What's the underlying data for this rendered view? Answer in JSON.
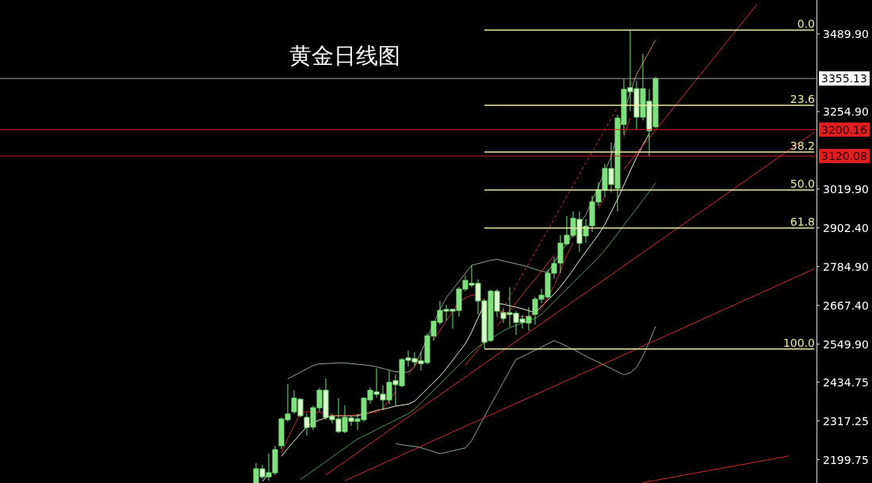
{
  "chart_data": {
    "type": "candlestick",
    "title": "黄金日线图",
    "color": "#80e080",
    "tick_labels": "y",
    "grid": false,
    "ylim": [
      2129,
      3593
    ],
    "yticks": [
      {
        "value": 2199.75,
        "label": "2199.75"
      },
      {
        "value": 2317.25,
        "label": "2317.25"
      },
      {
        "value": 2434.75,
        "label": "2434.75"
      },
      {
        "value": 2549.9,
        "label": "2549.90"
      },
      {
        "value": 2667.4,
        "label": "2667.40"
      },
      {
        "value": 2784.9,
        "label": "2784.90"
      },
      {
        "value": 2902.4,
        "label": "2902.40"
      },
      {
        "value": 3019.9,
        "label": "3019.90"
      },
      {
        "value": 3254.9,
        "label": "3254.90"
      },
      {
        "value": 3489.9,
        "label": "3489.90"
      }
    ],
    "categories": [
      null,
      null,
      null,
      null,
      null,
      null,
      null,
      null,
      null,
      null,
      null,
      null,
      null,
      null,
      null,
      null,
      null,
      null,
      null,
      null,
      null,
      null,
      null,
      null,
      null,
      null,
      null,
      null,
      null,
      null,
      null,
      null,
      null,
      null,
      null,
      null,
      null,
      null,
      null,
      null,
      null,
      null,
      null,
      null,
      null,
      null,
      null,
      null,
      null,
      null,
      null,
      null,
      null,
      null,
      null,
      null,
      null,
      null,
      null,
      null,
      null,
      null,
      null,
      null,
      null,
      null,
      null,
      null,
      null,
      null,
      null,
      null,
      null,
      null,
      null,
      null,
      null,
      null,
      null,
      null,
      null,
      null,
      null,
      null,
      null,
      null,
      null,
      null,
      null
    ],
    "ohlc": [
      [
        2130,
        2189,
        2130,
        2172
      ],
      [
        2172,
        2184,
        2141,
        2148
      ],
      [
        2148,
        2218,
        2136,
        2160
      ],
      [
        2160,
        2242,
        2153,
        2230
      ],
      [
        2242,
        2328,
        2232,
        2323
      ],
      [
        2321,
        2429,
        2314,
        2338
      ],
      [
        2345,
        2410,
        2338,
        2386
      ],
      [
        2383,
        2386,
        2328,
        2333
      ],
      [
        2328,
        2340,
        2273,
        2297
      ],
      [
        2299,
        2364,
        2290,
        2357
      ],
      [
        2357,
        2417,
        2345,
        2410
      ],
      [
        2410,
        2446,
        2321,
        2328
      ],
      [
        2331,
        2340,
        2309,
        2321
      ],
      [
        2323,
        2386,
        2280,
        2285
      ],
      [
        2285,
        2364,
        2280,
        2328
      ],
      [
        2326,
        2333,
        2302,
        2316
      ],
      [
        2316,
        2338,
        2290,
        2323
      ],
      [
        2321,
        2388,
        2314,
        2386
      ],
      [
        2381,
        2419,
        2369,
        2410
      ],
      [
        2405,
        2477,
        2388,
        2398
      ],
      [
        2398,
        2424,
        2350,
        2381
      ],
      [
        2381,
        2470,
        2369,
        2434
      ],
      [
        2439,
        2458,
        2364,
        2427
      ],
      [
        2424,
        2508,
        2419,
        2503
      ],
      [
        2508,
        2530,
        2482,
        2501
      ],
      [
        2506,
        2525,
        2484,
        2496
      ],
      [
        2499,
        2525,
        2470,
        2491
      ],
      [
        2494,
        2583,
        2489,
        2575
      ],
      [
        2575,
        2621,
        2561,
        2619
      ],
      [
        2616,
        2681,
        2609,
        2652
      ],
      [
        2655,
        2669,
        2621,
        2650
      ],
      [
        2655,
        2657,
        2597,
        2650
      ],
      [
        2652,
        2724,
        2633,
        2717
      ],
      [
        2717,
        2758,
        2710,
        2743
      ],
      [
        2734,
        2789,
        2722,
        2729
      ],
      [
        2734,
        2746,
        2640,
        2681
      ],
      [
        2681,
        2688,
        2537,
        2556
      ],
      [
        2561,
        2715,
        2556,
        2710
      ],
      [
        2710,
        2717,
        2633,
        2650
      ],
      [
        2645,
        2657,
        2614,
        2628
      ],
      [
        2645,
        2722,
        2602,
        2640
      ],
      [
        2643,
        2650,
        2578,
        2616
      ],
      [
        2626,
        2638,
        2597,
        2616
      ],
      [
        2614,
        2662,
        2590,
        2633
      ],
      [
        2640,
        2693,
        2609,
        2686
      ],
      [
        2686,
        2717,
        2674,
        2698
      ],
      [
        2693,
        2777,
        2688,
        2765
      ],
      [
        2765,
        2813,
        2748,
        2794
      ],
      [
        2796,
        2880,
        2765,
        2856
      ],
      [
        2854,
        2938,
        2849,
        2880
      ],
      [
        2880,
        2952,
        2873,
        2931
      ],
      [
        2928,
        2952,
        2830,
        2856
      ],
      [
        2878,
        2928,
        2856,
        2907
      ],
      [
        2909,
        3000,
        2890,
        2981
      ],
      [
        2981,
        3041,
        2969,
        3017
      ],
      [
        3017,
        3096,
        2998,
        3082
      ],
      [
        3082,
        3161,
        3010,
        3034
      ],
      [
        3022,
        3245,
        2952,
        3235
      ],
      [
        3216,
        3353,
        3185,
        3322
      ],
      [
        3327,
        3500,
        3257,
        3315
      ],
      [
        3324,
        3348,
        3202,
        3238
      ],
      [
        3238,
        3430,
        3228,
        3324
      ],
      [
        3286,
        3322,
        3120,
        3197
      ],
      [
        3209,
        3360,
        3204,
        3355
      ],
      null,
      null,
      null,
      null,
      null,
      null,
      null,
      null,
      null,
      null,
      null,
      null,
      null,
      null,
      null,
      null,
      null,
      null,
      null,
      null,
      null,
      null,
      null,
      null,
      null
    ],
    "ref_lines": [
      {
        "axis": "y",
        "value": 3355.13,
        "label": "3355.13",
        "color": "#a0a0a8"
      },
      {
        "axis": "y",
        "value": 3200.16,
        "label": "3200.16",
        "color": "#e02020"
      },
      {
        "axis": "y",
        "value": 3120.08,
        "label": "3120.08",
        "color": "#e02020"
      }
    ],
    "series": [
      {
        "type": "line",
        "color": "#8aa88a",
        "values": [
          null,
          null,
          null,
          null,
          null,
          2445,
          2455,
          2465,
          2475,
          2485,
          2490,
          2491,
          2492,
          2493,
          2493,
          2491,
          2489,
          2487,
          2485,
          2481,
          2476,
          2471,
          2466,
          2465,
          2465,
          2482,
          2525,
          2568,
          2612,
          2655,
          2691,
          2715,
          2740,
          2765,
          2789,
          2794,
          2799,
          2804,
          2807,
          2802,
          2798,
          2793,
          2789,
          2783,
          2777,
          2771,
          2768,
          2798,
          2827,
          2856,
          2885,
          2914,
          2942,
          2985,
          3029,
          3073,
          3119,
          3184,
          3249,
          3314,
          3367,
          3402,
          3437,
          3472,
          null,
          null,
          null,
          null,
          null,
          null,
          null,
          null,
          null,
          null,
          null,
          null,
          null,
          null,
          null,
          null,
          null,
          null,
          null,
          null,
          null,
          null,
          null,
          null,
          null
        ]
      },
      {
        "type": "line",
        "color": "#8aa88a",
        "values": [
          null,
          null,
          null,
          null,
          null,
          null,
          null,
          null,
          null,
          null,
          null,
          null,
          null,
          null,
          null,
          null,
          null,
          null,
          null,
          null,
          null,
          null,
          2248,
          2245,
          2242,
          2240,
          2236,
          2230,
          2224,
          2218,
          2222,
          2227,
          2231,
          2235,
          2258,
          2294,
          2330,
          2366,
          2400,
          2435,
          2470,
          2504,
          2512,
          2522,
          2531,
          2541,
          2551,
          2560,
          2553,
          2543,
          2534,
          2524,
          2514,
          2504,
          2495,
          2485,
          2476,
          2466,
          2457,
          2463,
          2479,
          2514,
          2557,
          2604,
          null,
          null,
          null,
          null,
          null,
          null,
          null,
          null,
          null,
          null,
          null,
          null,
          null,
          null,
          null,
          null,
          null,
          null,
          null,
          null,
          null,
          null,
          null,
          null,
          null
        ]
      },
      {
        "type": "line",
        "color": "#4f9a4f",
        "values": [
          null,
          null,
          null,
          null,
          null,
          null,
          null,
          2140,
          2153,
          2167,
          2180,
          2194,
          2208,
          2222,
          2235,
          2249,
          2262,
          2272,
          2281,
          2291,
          2301,
          2310,
          2320,
          2330,
          2339,
          2353,
          2372,
          2391,
          2410,
          2429,
          2449,
          2468,
          2487,
          2506,
          2525,
          2542,
          2554,
          2566,
          2578,
          2590,
          2600,
          2607,
          2614,
          2621,
          2628,
          2641,
          2660,
          2679,
          2698,
          2717,
          2737,
          2756,
          2775,
          2794,
          2813,
          2835,
          2860,
          2885,
          2911,
          2936,
          2961,
          2987,
          3012,
          3038,
          null,
          null,
          null,
          null,
          null,
          null,
          null,
          null,
          null,
          null,
          null,
          null,
          null,
          null,
          null,
          null,
          null,
          null,
          null,
          null,
          null,
          null,
          null,
          null,
          null
        ]
      },
      {
        "type": "line",
        "color": "#f0f0d0",
        "values": [
          null,
          2133,
          2158,
          null,
          2210,
          2234,
          2256,
          2278,
          2300,
          2313,
          2320,
          2326,
          2333,
          2333,
          2333,
          2333,
          2333,
          2338,
          2343,
          2349,
          2353,
          2357,
          2362,
          2365,
          2368,
          2377,
          2396,
          2415,
          2434,
          2453,
          2476,
          2501,
          2526,
          2551,
          2587,
          2630,
          2669,
          null,
          2673,
          2671,
          2666,
          2662,
          2657,
          2651,
          2645,
          2664,
          2683,
          2702,
          2724,
          2749,
          2775,
          2804,
          2830,
          2856,
          2882,
          2913,
          2951,
          2989,
          3032,
          3075,
          3116,
          3154,
          3188,
          null,
          null,
          null,
          null,
          null,
          null,
          null,
          null,
          null,
          null,
          null,
          null,
          null,
          null,
          null,
          null,
          null,
          null,
          null,
          null,
          null,
          null,
          null,
          null,
          null,
          null
        ]
      },
      {
        "type": "line",
        "color": "#c03030",
        "values": [
          null,
          null,
          null,
          null,
          2220,
          2264,
          2303,
          2341,
          2345,
          2345,
          2343,
          2338,
          2333,
          2333,
          2333,
          2334,
          2336,
          2339,
          2341,
          2344,
          2355,
          2380,
          2406,
          null,
          2457,
          2483,
          2509,
          null,
          2562,
          2592,
          2620,
          2649,
          2678,
          2690,
          2699,
          2697,
          2678,
          null,
          2652,
          2648,
          2643,
          2638,
          2633,
          2635,
          2642,
          2658,
          2692,
          2726,
          2772,
          2820,
          2857,
          null,
          null,
          null,
          2961,
          2999,
          null,
          null,
          3179,
          3236,
          null,
          null,
          null,
          null,
          null,
          null,
          null,
          null,
          null,
          null,
          null,
          null,
          null,
          null,
          null,
          null,
          null,
          null,
          null,
          null,
          null,
          null,
          null,
          null,
          null,
          null,
          null,
          null,
          null
        ]
      },
      {
        "type": "line",
        "color": "#d03030",
        "values": [
          null,
          null,
          null,
          null,
          null,
          null,
          null,
          null,
          null,
          null,
          null,
          null,
          null,
          null,
          null,
          null,
          null,
          null,
          null,
          null,
          null,
          null,
          null,
          null,
          null,
          null,
          null,
          null,
          null,
          null,
          null,
          null,
          null,
          2486,
          2510,
          2533,
          2557,
          null,
          2605,
          2629,
          2652,
          2676,
          2700,
          2724,
          2747,
          2771,
          2795,
          2819,
          null,
          null,
          null,
          null,
          null,
          null,
          null,
          null,
          null,
          null,
          3080,
          3104,
          3128,
          3152,
          3175,
          3199,
          3223,
          3247,
          3271,
          3294,
          3318,
          3342,
          3366,
          3389,
          3413,
          3437,
          3461,
          3485,
          3508,
          3532,
          3556,
          3580,
          null,
          null,
          null,
          null,
          null,
          null,
          null,
          null,
          null
        ]
      },
      {
        "type": "line",
        "color": "#d03030",
        "values": [
          null,
          null,
          null,
          null,
          null,
          null,
          null,
          null,
          null,
          null,
          null,
          2154,
          2167,
          2181,
          2194,
          2208,
          2221,
          2235,
          2248,
          2262,
          2275,
          2289,
          2302,
          2316,
          2329,
          2343,
          2356,
          2370,
          2383,
          2396,
          2410,
          2423,
          2437,
          2450,
          2464,
          2477,
          2491,
          2504,
          2518,
          2531,
          2545,
          2558,
          2572,
          2585,
          2599,
          2612,
          2626,
          2639,
          2653,
          2666,
          2679,
          2693,
          2706,
          2720,
          2733,
          2747,
          2760,
          2774,
          2787,
          2801,
          2814,
          2828,
          2841,
          2855,
          2868,
          2882,
          2895,
          2909,
          2922,
          2936,
          2949,
          2962,
          2976,
          2989,
          3003,
          3016,
          3030,
          3043,
          3057,
          3070,
          3084,
          3097,
          3111,
          3124,
          3138,
          3151,
          3165,
          3178,
          3192
        ]
      },
      {
        "type": "line",
        "color": "#d03030",
        "values": [
          null,
          null,
          null,
          null,
          null,
          null,
          null,
          null,
          null,
          null,
          null,
          null,
          null,
          null,
          2136,
          2145,
          2153,
          2162,
          2171,
          2179,
          2188,
          2197,
          2205,
          2214,
          2223,
          2231,
          2240,
          2249,
          2258,
          2266,
          2275,
          2284,
          2292,
          2301,
          2310,
          2318,
          2327,
          2336,
          2344,
          2353,
          2362,
          2370,
          2379,
          2388,
          2396,
          2405,
          2414,
          2422,
          2431,
          2440,
          2448,
          2457,
          2466,
          2474,
          2483,
          2492,
          2500,
          2509,
          2518,
          2526,
          2535,
          2544,
          2553,
          2561,
          2570,
          2579,
          2587,
          2596,
          2605,
          2613,
          2622,
          2631,
          2639,
          2648,
          2657,
          2665,
          2674,
          2683,
          2691,
          2700,
          2709,
          2717,
          2726,
          2735,
          2743,
          2752,
          2761,
          2769,
          2778
        ]
      },
      {
        "type": "line",
        "color": "#d03030",
        "values": [
          null,
          null,
          null,
          null,
          null,
          null,
          null,
          null,
          null,
          null,
          null,
          null,
          null,
          null,
          null,
          null,
          null,
          null,
          null,
          null,
          null,
          null,
          null,
          null,
          null,
          null,
          null,
          null,
          null,
          null,
          null,
          null,
          null,
          null,
          null,
          null,
          null,
          null,
          null,
          null,
          null,
          null,
          null,
          null,
          null,
          null,
          null,
          null,
          null,
          null,
          null,
          null,
          null,
          null,
          null,
          null,
          null,
          null,
          null,
          null,
          null,
          2130,
          2134,
          2137,
          2141,
          2144,
          2148,
          2151,
          2155,
          2158,
          2162,
          2165,
          2169,
          2172,
          2176,
          2179,
          2183,
          2186,
          2190,
          2193,
          2197,
          2200,
          2204,
          2207,
          2211,
          null,
          null,
          null,
          null
        ]
      },
      {
        "type": "line",
        "color": "#b03030",
        "line_style": "dashed",
        "values": [
          null,
          null,
          null,
          null,
          null,
          null,
          null,
          null,
          null,
          null,
          null,
          null,
          null,
          null,
          null,
          null,
          null,
          null,
          null,
          null,
          null,
          null,
          null,
          null,
          null,
          null,
          null,
          null,
          null,
          null,
          null,
          null,
          null,
          null,
          null,
          null,
          null,
          null,
          2626,
          2660,
          2693,
          2727,
          2761,
          2795,
          2829,
          2862,
          2896,
          2930,
          2964,
          2998,
          3031,
          3065,
          3099,
          3133,
          3166,
          3200,
          3234,
          3268,
          null,
          3335,
          3369,
          3403,
          3437,
          3471,
          null,
          null,
          null,
          null,
          null,
          null,
          null,
          null,
          null,
          null,
          null,
          null,
          null,
          null,
          null,
          null,
          null,
          null,
          null,
          null,
          null,
          null,
          null,
          null,
          null
        ]
      },
      {
        "type": "line",
        "name": "0.0",
        "color": "#e8e8a0",
        "values": [
          null,
          null,
          null,
          null,
          null,
          null,
          null,
          null,
          null,
          null,
          null,
          null,
          null,
          null,
          null,
          null,
          null,
          null,
          null,
          null,
          null,
          null,
          null,
          null,
          null,
          null,
          null,
          null,
          null,
          null,
          null,
          null,
          null,
          null,
          null,
          null,
          3502,
          3502,
          3502,
          3502,
          3502,
          3502,
          3502,
          3502,
          3502,
          3502,
          3502,
          3502,
          3502,
          3502,
          3502,
          3502,
          3502,
          3502,
          3502,
          3502,
          3502,
          3502,
          3502,
          3502,
          3502,
          3502,
          3502,
          3502,
          3502,
          3502,
          3502,
          3502,
          3502,
          3502,
          3502,
          3502,
          3502,
          3502,
          3502,
          3502,
          3502,
          3502,
          3502,
          3502,
          3502,
          3502,
          3502,
          3502,
          3502,
          3502,
          3502,
          3502,
          3502
        ]
      },
      {
        "type": "line",
        "name": "23.6",
        "color": "#e8e8a0",
        "values": [
          null,
          null,
          null,
          null,
          null,
          null,
          null,
          null,
          null,
          null,
          null,
          null,
          null,
          null,
          null,
          null,
          null,
          null,
          null,
          null,
          null,
          null,
          null,
          null,
          null,
          null,
          null,
          null,
          null,
          null,
          null,
          null,
          null,
          null,
          null,
          null,
          3274,
          3274,
          3274,
          3274,
          3274,
          3274,
          3274,
          3274,
          3274,
          3274,
          3274,
          3274,
          3274,
          3274,
          3274,
          3274,
          3274,
          3274,
          3274,
          3274,
          3274,
          3274,
          3274,
          3274,
          3274,
          3274,
          3274,
          3274,
          3274,
          3274,
          3274,
          3274,
          3274,
          3274,
          3274,
          3274,
          3274,
          3274,
          3274,
          3274,
          3274,
          3274,
          3274,
          3274,
          3274,
          3274,
          3274,
          3274,
          3274,
          3274,
          3274,
          3274,
          3274
        ]
      },
      {
        "type": "line",
        "name": "38.2",
        "color": "#e8e8a0",
        "values": [
          null,
          null,
          null,
          null,
          null,
          null,
          null,
          null,
          null,
          null,
          null,
          null,
          null,
          null,
          null,
          null,
          null,
          null,
          null,
          null,
          null,
          null,
          null,
          null,
          null,
          null,
          null,
          null,
          null,
          null,
          null,
          null,
          null,
          null,
          null,
          null,
          3132,
          3132,
          3132,
          3132,
          3132,
          3132,
          3132,
          3132,
          3132,
          3132,
          3132,
          3132,
          3132,
          3132,
          3132,
          3132,
          3132,
          3132,
          3132,
          3132,
          3132,
          3132,
          3132,
          3132,
          3132,
          3132,
          3132,
          3132,
          3132,
          3132,
          3132,
          3132,
          3132,
          3132,
          3132,
          3132,
          3132,
          3132,
          3132,
          3132,
          3132,
          3132,
          3132,
          3132,
          3132,
          3132,
          3132,
          3132,
          3132,
          3132,
          3132,
          3132,
          3132
        ]
      },
      {
        "type": "line",
        "name": "50.0",
        "color": "#e8e8a0",
        "values": [
          null,
          null,
          null,
          null,
          null,
          null,
          null,
          null,
          null,
          null,
          null,
          null,
          null,
          null,
          null,
          null,
          null,
          null,
          null,
          null,
          null,
          null,
          null,
          null,
          null,
          null,
          null,
          null,
          null,
          null,
          null,
          null,
          null,
          null,
          null,
          null,
          3017,
          3017,
          3017,
          3017,
          3017,
          3017,
          3017,
          3017,
          3017,
          3017,
          3017,
          3017,
          3017,
          3017,
          3017,
          3017,
          3017,
          3017,
          3017,
          3017,
          3017,
          3017,
          3017,
          3017,
          3017,
          3017,
          3017,
          3017,
          3017,
          3017,
          3017,
          3017,
          3017,
          3017,
          3017,
          3017,
          3017,
          3017,
          3017,
          3017,
          3017,
          3017,
          3017,
          3017,
          3017,
          3017,
          3017,
          3017,
          3017,
          3017,
          3017,
          3017,
          3017
        ]
      },
      {
        "type": "line",
        "name": "61.8",
        "color": "#e8e8a0",
        "values": [
          null,
          null,
          null,
          null,
          null,
          null,
          null,
          null,
          null,
          null,
          null,
          null,
          null,
          null,
          null,
          null,
          null,
          null,
          null,
          null,
          null,
          null,
          null,
          null,
          null,
          null,
          null,
          null,
          null,
          null,
          null,
          null,
          null,
          null,
          null,
          null,
          2902,
          2902,
          2902,
          2902,
          2902,
          2902,
          2902,
          2902,
          2902,
          2902,
          2902,
          2902,
          2902,
          2902,
          2902,
          2902,
          2902,
          2902,
          2902,
          2902,
          2902,
          2902,
          2902,
          2902,
          2902,
          2902,
          2902,
          2902,
          2902,
          2902,
          2902,
          2902,
          2902,
          2902,
          2902,
          2902,
          2902,
          2902,
          2902,
          2902,
          2902,
          2902,
          2902,
          2902,
          2902,
          2902,
          2902,
          2902,
          2902,
          2902,
          2902,
          2902,
          2902
        ]
      },
      {
        "type": "line",
        "name": "100.0",
        "color": "#e8e8a0",
        "values": [
          null,
          null,
          null,
          null,
          null,
          null,
          null,
          null,
          null,
          null,
          null,
          null,
          null,
          null,
          null,
          null,
          null,
          null,
          null,
          null,
          null,
          null,
          null,
          null,
          null,
          null,
          null,
          null,
          null,
          null,
          null,
          null,
          null,
          null,
          null,
          null,
          2535,
          2535,
          2535,
          2535,
          2535,
          2535,
          2535,
          2535,
          2535,
          2535,
          2535,
          2535,
          2535,
          2535,
          2535,
          2535,
          2535,
          2535,
          2535,
          2535,
          2535,
          2535,
          2535,
          2535,
          2535,
          2535,
          2535,
          2535,
          2535,
          2535,
          2535,
          2535,
          2535,
          2535,
          2535,
          2535,
          2535,
          2535,
          2535,
          2535,
          2535,
          2535,
          2535,
          2535,
          2535,
          2535,
          2535,
          2535,
          2535,
          2535,
          2535,
          2535,
          2535
        ]
      }
    ]
  }
}
